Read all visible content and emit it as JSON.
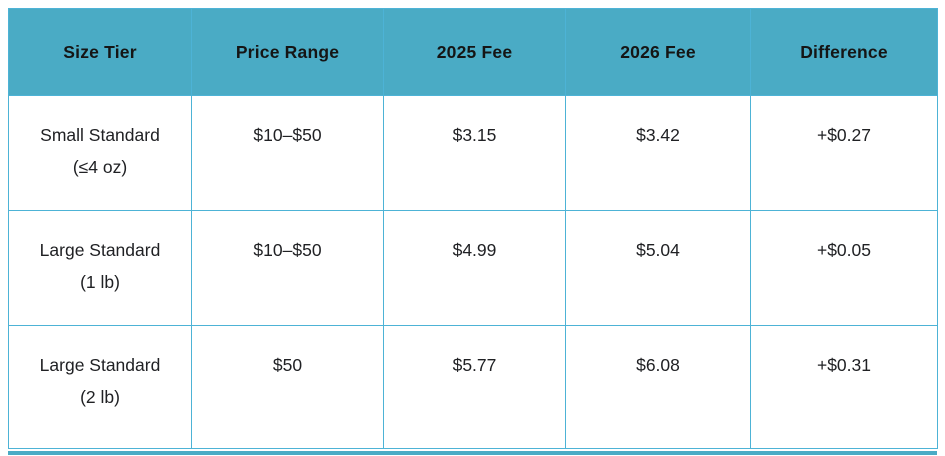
{
  "chart_data": {
    "type": "table",
    "title": "",
    "columns": [
      "Size Tier",
      "Price Range",
      "2025 Fee",
      "2026 Fee",
      "Difference"
    ],
    "rows": [
      {
        "size_tier_line1": "Small Standard",
        "size_tier_line2": "(≤4 oz)",
        "price_range": "$10–$50",
        "fee_2025": "$3.15",
        "fee_2026": "$3.42",
        "difference": "+$0.27"
      },
      {
        "size_tier_line1": "Large Standard",
        "size_tier_line2": "(1 lb)",
        "price_range": "$10–$50",
        "fee_2025": "$4.99",
        "fee_2026": "$5.04",
        "difference": "+$0.05"
      },
      {
        "size_tier_line1": "Large Standard",
        "size_tier_line2": "(2 lb)",
        "price_range": "$50",
        "fee_2025": "$5.77",
        "fee_2026": "$6.08",
        "difference": "+$0.31"
      }
    ]
  },
  "colors": {
    "header_background": "#4aabc5",
    "cell_border": "#4db3d6",
    "header_text": "#151515",
    "body_text": "#202124",
    "bottom_strip": "#4aabc5"
  }
}
